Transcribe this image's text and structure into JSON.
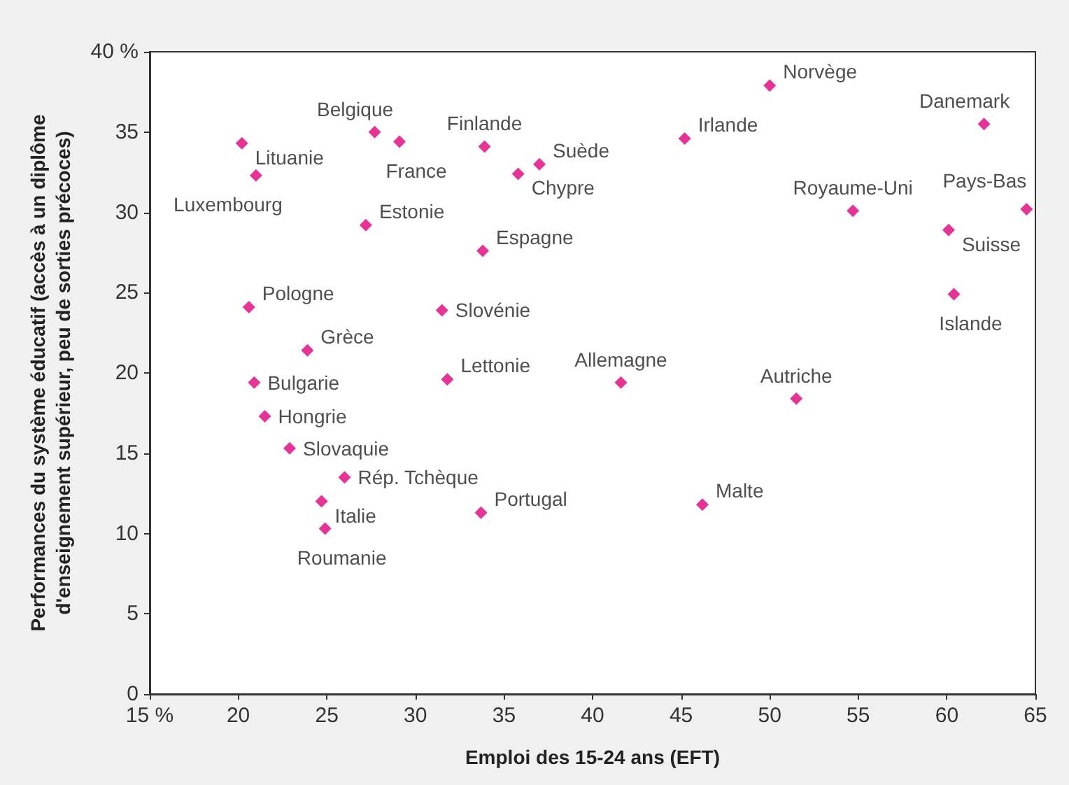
{
  "chart_data": {
    "type": "scatter",
    "xlabel": "Emploi des 15-24 ans (EFT)",
    "ylabel": "Performances du système éducatif (accès à un diplôme\nd'enseignement supérieur, peu de sorties précoces)",
    "x": [
      20.2,
      21.0,
      27.7,
      29.1,
      33.9,
      37.0,
      35.8,
      27.2,
      33.8,
      20.6,
      31.5,
      23.9,
      31.8,
      20.9,
      21.5,
      22.9,
      26.0,
      24.7,
      24.9,
      33.7,
      50.0,
      45.2,
      62.1,
      54.7,
      64.5,
      60.1,
      60.4,
      41.6,
      51.5,
      46.2
    ],
    "values": [
      34.3,
      32.3,
      35.0,
      34.4,
      34.1,
      33.0,
      32.4,
      29.2,
      27.6,
      24.1,
      23.9,
      21.4,
      19.6,
      19.4,
      17.3,
      15.3,
      13.5,
      12.0,
      10.3,
      11.3,
      37.9,
      34.6,
      35.5,
      30.1,
      30.2,
      28.9,
      24.9,
      19.4,
      18.4,
      11.8
    ],
    "value_labels": [
      "Lituanie",
      "Luxembourg",
      "Belgique",
      "France",
      "Finlande",
      "Suède",
      "Chypre",
      "Estonie",
      "Espagne",
      "Pologne",
      "Slovénie",
      "Grèce",
      "Lettonie",
      "Bulgarie",
      "Hongrie",
      "Slovaquie",
      "Rép. Tchèque",
      "Italie",
      "Roumanie",
      "Portugal",
      "Norvège",
      "Irlande",
      "Danemark",
      "Royaume-Uni",
      "Pays-Bas",
      "Suisse",
      "Islande",
      "Allemagne",
      "Autriche",
      "Malte"
    ],
    "color": "#e0007a",
    "marker": "diamond",
    "xlim": [
      15,
      65
    ],
    "xticks": [
      {
        "value": 15,
        "label": "15 %"
      },
      20,
      25,
      30,
      35,
      40,
      45,
      50,
      55,
      60,
      65
    ],
    "ylim": [
      0,
      40
    ],
    "yticks": [
      0,
      5,
      10,
      15,
      20,
      25,
      30,
      35,
      {
        "value": 40,
        "label": "40 %"
      }
    ],
    "grid": false
  }
}
